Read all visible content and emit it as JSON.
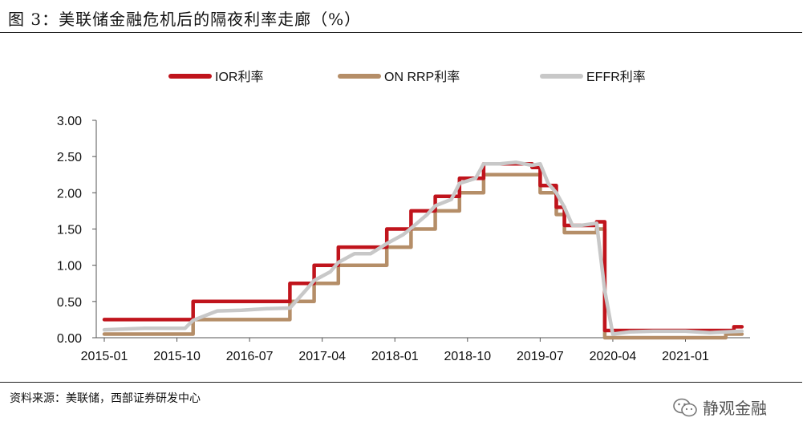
{
  "header": {
    "title": "图 3：美联储金融危机后的隔夜利率走廊（%）"
  },
  "footer": {
    "source": "资料来源：美联储，西部证券研发中心",
    "watermark": "静观金融"
  },
  "chart_data": {
    "type": "line",
    "title": "",
    "xlabel": "",
    "ylabel": "",
    "ylim": [
      0,
      3
    ],
    "yticks": [
      "0.00",
      "0.50",
      "1.00",
      "1.50",
      "2.00",
      "2.50",
      "3.00"
    ],
    "xticks": [
      "2015-01",
      "2015-10",
      "2016-07",
      "2017-04",
      "2018-01",
      "2018-10",
      "2019-07",
      "2020-04",
      "2021-01"
    ],
    "legend_position": "top",
    "grid": false,
    "series": [
      {
        "name": "IOR利率",
        "color": "#c0141c",
        "x": [
          "2015-01",
          "2015-12",
          "2016-12",
          "2017-03",
          "2017-06",
          "2017-12",
          "2018-03",
          "2018-06",
          "2018-09",
          "2018-12",
          "2019-06",
          "2019-07",
          "2019-08",
          "2019-09",
          "2019-10",
          "2019-11",
          "2019-12",
          "2020-02",
          "2020-03",
          "2020-04",
          "2021-06",
          "2021-07",
          "2021-08"
        ],
        "y": [
          0.25,
          0.5,
          0.75,
          1.0,
          1.25,
          1.5,
          1.75,
          1.95,
          2.2,
          2.4,
          2.35,
          2.1,
          2.1,
          1.8,
          1.55,
          1.55,
          1.55,
          1.6,
          0.1,
          0.1,
          0.1,
          0.15,
          0.15
        ]
      },
      {
        "name": "ON RRP利率",
        "color": "#b58e68",
        "x": [
          "2015-01",
          "2015-12",
          "2016-12",
          "2017-03",
          "2017-06",
          "2017-12",
          "2018-03",
          "2018-06",
          "2018-09",
          "2018-12",
          "2019-06",
          "2019-07",
          "2019-08",
          "2019-09",
          "2019-10",
          "2019-11",
          "2019-12",
          "2020-02",
          "2020-03",
          "2020-04",
          "2021-05",
          "2021-06",
          "2021-08"
        ],
        "y": [
          0.05,
          0.25,
          0.5,
          0.75,
          1.0,
          1.25,
          1.5,
          1.75,
          2.0,
          2.25,
          2.25,
          2.0,
          2.0,
          1.7,
          1.45,
          1.45,
          1.45,
          1.5,
          0.0,
          0.0,
          0.0,
          0.05,
          0.05
        ]
      },
      {
        "name": "EFFR利率",
        "color": "#c8c8c8",
        "x": [
          "2015-01",
          "2015-06",
          "2015-11",
          "2015-12",
          "2016-03",
          "2016-06",
          "2016-09",
          "2016-12",
          "2017-02",
          "2017-03",
          "2017-05",
          "2017-06",
          "2017-08",
          "2017-10",
          "2017-12",
          "2018-02",
          "2018-03",
          "2018-05",
          "2018-06",
          "2018-08",
          "2018-09",
          "2018-11",
          "2018-12",
          "2019-02",
          "2019-04",
          "2019-06",
          "2019-07",
          "2019-08",
          "2019-09",
          "2019-10",
          "2019-11",
          "2019-12",
          "2020-02",
          "2020-03",
          "2020-04",
          "2020-06",
          "2020-09",
          "2021-01",
          "2021-04",
          "2021-06",
          "2021-08"
        ],
        "y": [
          0.11,
          0.13,
          0.13,
          0.24,
          0.37,
          0.38,
          0.4,
          0.41,
          0.66,
          0.79,
          0.91,
          1.04,
          1.16,
          1.16,
          1.3,
          1.42,
          1.51,
          1.7,
          1.82,
          1.91,
          2.13,
          2.2,
          2.4,
          2.4,
          2.42,
          2.38,
          2.4,
          2.13,
          2.0,
          1.8,
          1.55,
          1.55,
          1.58,
          0.65,
          0.05,
          0.08,
          0.09,
          0.09,
          0.07,
          0.08,
          0.09
        ]
      }
    ]
  }
}
